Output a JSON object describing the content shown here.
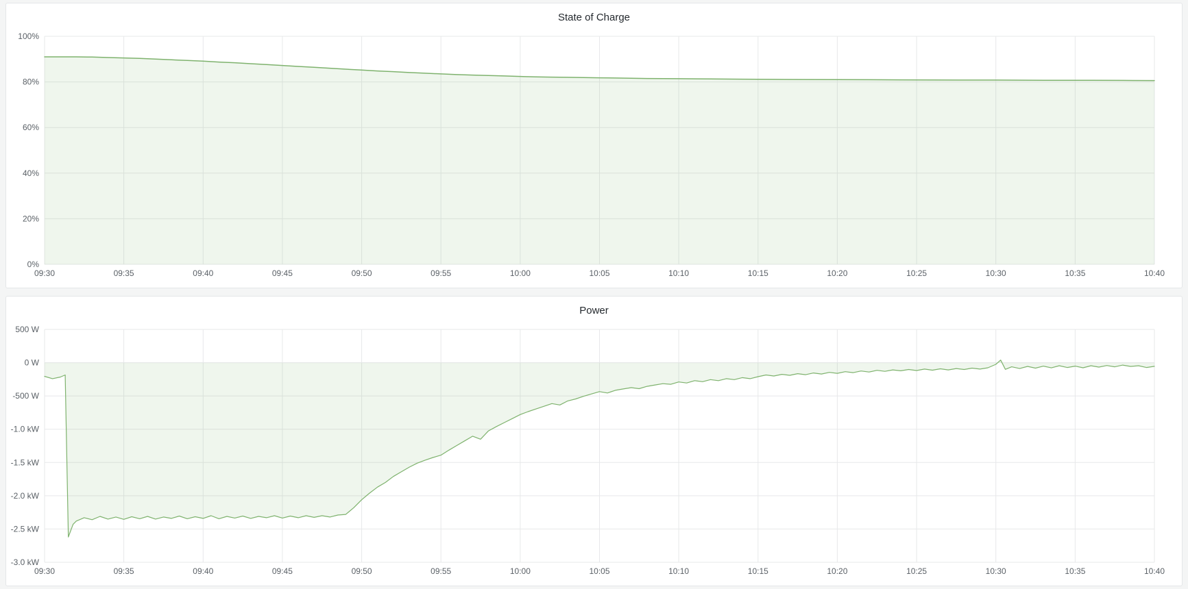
{
  "theme": {
    "page_bg": "#f4f5f5",
    "panel_bg": "#ffffff",
    "panel_border": "#e4e6e8",
    "title_color": "#24292e",
    "tick_color": "#5a6066",
    "grid_color": "#e7e8ea",
    "series_green": "#7eb26d"
  },
  "chart_data": [
    {
      "type": "area",
      "title": "State of Charge",
      "x_unit": "minutes since 09:30",
      "xlim": [
        0,
        70
      ],
      "ylim": [
        0,
        100
      ],
      "grid": true,
      "legend": "none",
      "xticks": [
        {
          "v": 0,
          "label": "09:30"
        },
        {
          "v": 5,
          "label": "09:35"
        },
        {
          "v": 10,
          "label": "09:40"
        },
        {
          "v": 15,
          "label": "09:45"
        },
        {
          "v": 20,
          "label": "09:50"
        },
        {
          "v": 25,
          "label": "09:55"
        },
        {
          "v": 30,
          "label": "10:00"
        },
        {
          "v": 35,
          "label": "10:05"
        },
        {
          "v": 40,
          "label": "10:10"
        },
        {
          "v": 45,
          "label": "10:15"
        },
        {
          "v": 50,
          "label": "10:20"
        },
        {
          "v": 55,
          "label": "10:25"
        },
        {
          "v": 60,
          "label": "10:30"
        },
        {
          "v": 65,
          "label": "10:35"
        },
        {
          "v": 70,
          "label": "10:40"
        }
      ],
      "yticks": [
        {
          "v": 0,
          "label": "0%"
        },
        {
          "v": 20,
          "label": "20%"
        },
        {
          "v": 40,
          "label": "40%"
        },
        {
          "v": 60,
          "label": "60%"
        },
        {
          "v": 80,
          "label": "80%"
        },
        {
          "v": 100,
          "label": "100%"
        }
      ],
      "series": [
        {
          "name": "State of Charge",
          "color": "#7eb26d",
          "fill_opacity": 0.12,
          "fill_to": 0,
          "line_width": 1.5,
          "points": [
            [
              0,
              91.0
            ],
            [
              1,
              91.0
            ],
            [
              2,
              91.0
            ],
            [
              3,
              90.9
            ],
            [
              4,
              90.7
            ],
            [
              5,
              90.5
            ],
            [
              6,
              90.3
            ],
            [
              7,
              90.0
            ],
            [
              8,
              89.7
            ],
            [
              9,
              89.4
            ],
            [
              10,
              89.1
            ],
            [
              11,
              88.7
            ],
            [
              12,
              88.4
            ],
            [
              13,
              88.0
            ],
            [
              14,
              87.6
            ],
            [
              15,
              87.2
            ],
            [
              16,
              86.8
            ],
            [
              17,
              86.4
            ],
            [
              18,
              86.0
            ],
            [
              19,
              85.6
            ],
            [
              20,
              85.2
            ],
            [
              21,
              84.8
            ],
            [
              22,
              84.5
            ],
            [
              23,
              84.1
            ],
            [
              24,
              83.8
            ],
            [
              25,
              83.5
            ],
            [
              26,
              83.2
            ],
            [
              27,
              83.0
            ],
            [
              28,
              82.8
            ],
            [
              29,
              82.6
            ],
            [
              30,
              82.4
            ],
            [
              31,
              82.2
            ],
            [
              32,
              82.1
            ],
            [
              33,
              82.0
            ],
            [
              34,
              81.9
            ],
            [
              35,
              81.8
            ],
            [
              36,
              81.7
            ],
            [
              37,
              81.6
            ],
            [
              38,
              81.5
            ],
            [
              39,
              81.45
            ],
            [
              40,
              81.4
            ],
            [
              42,
              81.3
            ],
            [
              44,
              81.2
            ],
            [
              46,
              81.1
            ],
            [
              48,
              81.05
            ],
            [
              50,
              81.0
            ],
            [
              52,
              80.95
            ],
            [
              54,
              80.9
            ],
            [
              56,
              80.85
            ],
            [
              58,
              80.8
            ],
            [
              60,
              80.8
            ],
            [
              62,
              80.75
            ],
            [
              64,
              80.7
            ],
            [
              66,
              80.7
            ],
            [
              68,
              80.65
            ],
            [
              70,
              80.6
            ]
          ]
        }
      ]
    },
    {
      "type": "area",
      "title": "Power",
      "x_unit": "minutes since 09:30",
      "xlim": [
        0,
        70
      ],
      "ylim": [
        -3000,
        500
      ],
      "grid": true,
      "legend": "none",
      "xticks": [
        {
          "v": 0,
          "label": "09:30"
        },
        {
          "v": 5,
          "label": "09:35"
        },
        {
          "v": 10,
          "label": "09:40"
        },
        {
          "v": 15,
          "label": "09:45"
        },
        {
          "v": 20,
          "label": "09:50"
        },
        {
          "v": 25,
          "label": "09:55"
        },
        {
          "v": 30,
          "label": "10:00"
        },
        {
          "v": 35,
          "label": "10:05"
        },
        {
          "v": 40,
          "label": "10:10"
        },
        {
          "v": 45,
          "label": "10:15"
        },
        {
          "v": 50,
          "label": "10:20"
        },
        {
          "v": 55,
          "label": "10:25"
        },
        {
          "v": 60,
          "label": "10:30"
        },
        {
          "v": 65,
          "label": "10:35"
        },
        {
          "v": 70,
          "label": "10:40"
        }
      ],
      "yticks": [
        {
          "v": 500,
          "label": "500 W"
        },
        {
          "v": 0,
          "label": "0 W"
        },
        {
          "v": -500,
          "label": "-500 W"
        },
        {
          "v": -1000,
          "label": "-1.0 kW"
        },
        {
          "v": -1500,
          "label": "-1.5 kW"
        },
        {
          "v": -2000,
          "label": "-2.0 kW"
        },
        {
          "v": -2500,
          "label": "-2.5 kW"
        },
        {
          "v": -3000,
          "label": "-3.0 kW"
        }
      ],
      "series": [
        {
          "name": "Power",
          "color": "#7eb26d",
          "fill_opacity": 0.12,
          "fill_to": 0,
          "line_width": 1.2,
          "points": [
            [
              0,
              -205
            ],
            [
              0.5,
              -240
            ],
            [
              1,
              -215
            ],
            [
              1.3,
              -185
            ],
            [
              1.5,
              -2620
            ],
            [
              1.8,
              -2430
            ],
            [
              2,
              -2380
            ],
            [
              2.5,
              -2330
            ],
            [
              3,
              -2360
            ],
            [
              3.5,
              -2310
            ],
            [
              4,
              -2350
            ],
            [
              4.5,
              -2320
            ],
            [
              5,
              -2355
            ],
            [
              5.5,
              -2315
            ],
            [
              6,
              -2345
            ],
            [
              6.5,
              -2310
            ],
            [
              7,
              -2350
            ],
            [
              7.5,
              -2320
            ],
            [
              8,
              -2340
            ],
            [
              8.5,
              -2305
            ],
            [
              9,
              -2345
            ],
            [
              9.5,
              -2315
            ],
            [
              10,
              -2340
            ],
            [
              10.5,
              -2300
            ],
            [
              11,
              -2345
            ],
            [
              11.5,
              -2310
            ],
            [
              12,
              -2335
            ],
            [
              12.5,
              -2305
            ],
            [
              13,
              -2340
            ],
            [
              13.5,
              -2310
            ],
            [
              14,
              -2330
            ],
            [
              14.5,
              -2300
            ],
            [
              15,
              -2335
            ],
            [
              15.5,
              -2305
            ],
            [
              16,
              -2330
            ],
            [
              16.5,
              -2300
            ],
            [
              17,
              -2325
            ],
            [
              17.5,
              -2300
            ],
            [
              18,
              -2320
            ],
            [
              18.5,
              -2290
            ],
            [
              19,
              -2280
            ],
            [
              19.5,
              -2180
            ],
            [
              20,
              -2060
            ],
            [
              20.5,
              -1960
            ],
            [
              21,
              -1870
            ],
            [
              21.5,
              -1800
            ],
            [
              22,
              -1710
            ],
            [
              22.5,
              -1640
            ],
            [
              23,
              -1570
            ],
            [
              23.5,
              -1510
            ],
            [
              24,
              -1465
            ],
            [
              24.5,
              -1425
            ],
            [
              25,
              -1390
            ],
            [
              25.5,
              -1315
            ],
            [
              26,
              -1245
            ],
            [
              26.5,
              -1175
            ],
            [
              27,
              -1105
            ],
            [
              27.5,
              -1150
            ],
            [
              28,
              -1025
            ],
            [
              28.5,
              -960
            ],
            [
              29,
              -900
            ],
            [
              29.5,
              -840
            ],
            [
              30,
              -780
            ],
            [
              30.5,
              -735
            ],
            [
              31,
              -695
            ],
            [
              31.5,
              -655
            ],
            [
              32,
              -615
            ],
            [
              32.5,
              -635
            ],
            [
              33,
              -575
            ],
            [
              33.5,
              -545
            ],
            [
              34,
              -505
            ],
            [
              34.5,
              -470
            ],
            [
              35,
              -435
            ],
            [
              35.5,
              -455
            ],
            [
              36,
              -415
            ],
            [
              36.5,
              -395
            ],
            [
              37,
              -375
            ],
            [
              37.5,
              -390
            ],
            [
              38,
              -355
            ],
            [
              38.5,
              -335
            ],
            [
              39,
              -315
            ],
            [
              39.5,
              -325
            ],
            [
              40,
              -290
            ],
            [
              40.5,
              -305
            ],
            [
              41,
              -270
            ],
            [
              41.5,
              -285
            ],
            [
              42,
              -255
            ],
            [
              42.5,
              -270
            ],
            [
              43,
              -240
            ],
            [
              43.5,
              -255
            ],
            [
              44,
              -225
            ],
            [
              44.5,
              -240
            ],
            [
              45,
              -210
            ],
            [
              45.5,
              -185
            ],
            [
              46,
              -200
            ],
            [
              46.5,
              -175
            ],
            [
              47,
              -190
            ],
            [
              47.5,
              -165
            ],
            [
              48,
              -180
            ],
            [
              48.5,
              -155
            ],
            [
              49,
              -170
            ],
            [
              49.5,
              -145
            ],
            [
              50,
              -160
            ],
            [
              50.5,
              -135
            ],
            [
              51,
              -150
            ],
            [
              51.5,
              -125
            ],
            [
              52,
              -140
            ],
            [
              52.5,
              -115
            ],
            [
              53,
              -130
            ],
            [
              53.5,
              -108
            ],
            [
              54,
              -122
            ],
            [
              54.5,
              -102
            ],
            [
              55,
              -118
            ],
            [
              55.5,
              -96
            ],
            [
              56,
              -112
            ],
            [
              56.5,
              -92
            ],
            [
              57,
              -108
            ],
            [
              57.5,
              -88
            ],
            [
              58,
              -102
            ],
            [
              58.5,
              -82
            ],
            [
              59,
              -96
            ],
            [
              59.5,
              -76
            ],
            [
              60,
              -25
            ],
            [
              60.3,
              40
            ],
            [
              60.6,
              -100
            ],
            [
              61,
              -62
            ],
            [
              61.5,
              -88
            ],
            [
              62,
              -56
            ],
            [
              62.5,
              -82
            ],
            [
              63,
              -52
            ],
            [
              63.5,
              -78
            ],
            [
              64,
              -46
            ],
            [
              64.5,
              -72
            ],
            [
              65,
              -52
            ],
            [
              65.5,
              -76
            ],
            [
              66,
              -46
            ],
            [
              66.5,
              -66
            ],
            [
              67,
              -42
            ],
            [
              67.5,
              -62
            ],
            [
              68,
              -36
            ],
            [
              68.5,
              -56
            ],
            [
              69,
              -46
            ],
            [
              69.5,
              -72
            ],
            [
              70,
              -55
            ]
          ]
        }
      ]
    }
  ]
}
